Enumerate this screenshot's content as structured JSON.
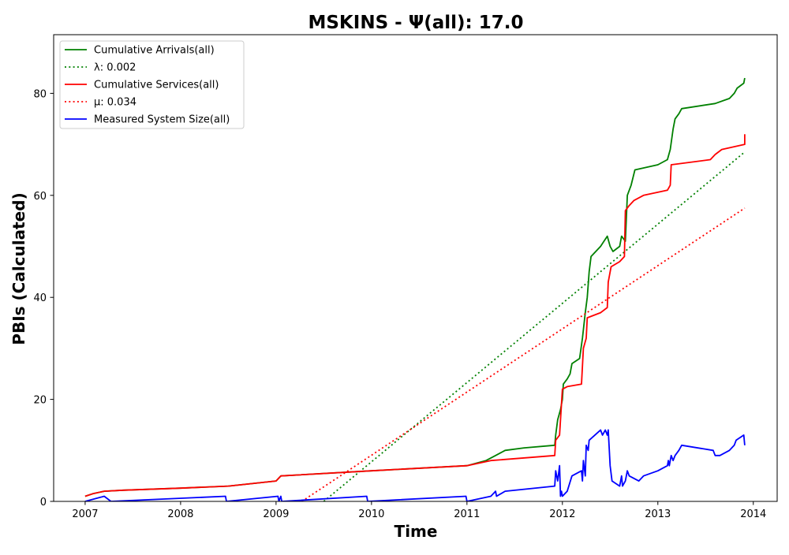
{
  "chart_data": {
    "type": "line",
    "title": "MSKINS -  Ψ(all): 17.0",
    "xlabel": "Time",
    "ylabel": "PBIs (Calculated)",
    "xlim": [
      2006.67,
      2014.25
    ],
    "ylim": [
      0,
      91.5
    ],
    "x_ticks": [
      2007,
      2008,
      2009,
      2010,
      2011,
      2012,
      2013,
      2014
    ],
    "y_ticks": [
      0,
      20,
      40,
      60,
      80
    ],
    "grid": false,
    "legend_position": "top-left",
    "series": [
      {
        "name": "Cumulative Arrivals(all)",
        "color": "#008000",
        "style": "solid",
        "points": [
          [
            2007.0,
            1
          ],
          [
            2007.08,
            1.5
          ],
          [
            2007.2,
            2
          ],
          [
            2007.4,
            2.2
          ],
          [
            2008.0,
            2.6
          ],
          [
            2008.5,
            3
          ],
          [
            2009.0,
            4
          ],
          [
            2009.05,
            5
          ],
          [
            2010.0,
            6
          ],
          [
            2011.0,
            7
          ],
          [
            2011.2,
            8
          ],
          [
            2011.3,
            9
          ],
          [
            2011.4,
            10
          ],
          [
            2011.6,
            10.5
          ],
          [
            2011.92,
            11
          ],
          [
            2011.93,
            13
          ],
          [
            2011.95,
            16
          ],
          [
            2011.98,
            18
          ],
          [
            2012.0,
            20
          ],
          [
            2012.01,
            23
          ],
          [
            2012.05,
            24
          ],
          [
            2012.08,
            25
          ],
          [
            2012.1,
            27
          ],
          [
            2012.18,
            28
          ],
          [
            2012.21,
            32
          ],
          [
            2012.24,
            37
          ],
          [
            2012.26,
            40
          ],
          [
            2012.28,
            45
          ],
          [
            2012.3,
            48
          ],
          [
            2012.4,
            50
          ],
          [
            2012.47,
            52
          ],
          [
            2012.5,
            50
          ],
          [
            2012.53,
            49
          ],
          [
            2012.6,
            50
          ],
          [
            2012.62,
            52
          ],
          [
            2012.66,
            51
          ],
          [
            2012.68,
            60
          ],
          [
            2012.72,
            62
          ],
          [
            2012.76,
            65
          ],
          [
            2013.0,
            66
          ],
          [
            2013.1,
            67
          ],
          [
            2013.13,
            69
          ],
          [
            2013.16,
            73
          ],
          [
            2013.18,
            75
          ],
          [
            2013.22,
            76
          ],
          [
            2013.25,
            77
          ],
          [
            2013.6,
            78
          ],
          [
            2013.75,
            79
          ],
          [
            2013.8,
            80
          ],
          [
            2013.83,
            81
          ],
          [
            2013.9,
            82
          ],
          [
            2013.91,
            83
          ]
        ]
      },
      {
        "name": "λ: 0.002",
        "color": "#008000",
        "style": "dotted",
        "points": [
          [
            2009.5,
            0
          ],
          [
            2013.91,
            68.5
          ]
        ]
      },
      {
        "name": "Cumulative Services(all)",
        "color": "#ff0000",
        "style": "solid",
        "points": [
          [
            2007.0,
            1
          ],
          [
            2007.08,
            1.5
          ],
          [
            2007.2,
            2
          ],
          [
            2007.4,
            2.2
          ],
          [
            2008.0,
            2.6
          ],
          [
            2008.5,
            3
          ],
          [
            2009.0,
            4
          ],
          [
            2009.05,
            5
          ],
          [
            2010.0,
            6
          ],
          [
            2011.0,
            7
          ],
          [
            2011.25,
            8
          ],
          [
            2011.92,
            9
          ],
          [
            2011.93,
            12
          ],
          [
            2011.97,
            13
          ],
          [
            2012.0,
            22
          ],
          [
            2012.05,
            22.5
          ],
          [
            2012.2,
            23
          ],
          [
            2012.22,
            30
          ],
          [
            2012.25,
            32
          ],
          [
            2012.26,
            36
          ],
          [
            2012.4,
            37
          ],
          [
            2012.47,
            38
          ],
          [
            2012.48,
            43
          ],
          [
            2012.51,
            46
          ],
          [
            2012.6,
            47
          ],
          [
            2012.65,
            48
          ],
          [
            2012.66,
            57
          ],
          [
            2012.7,
            58
          ],
          [
            2012.75,
            59
          ],
          [
            2012.85,
            60
          ],
          [
            2013.1,
            61
          ],
          [
            2013.13,
            62
          ],
          [
            2013.14,
            66
          ],
          [
            2013.55,
            67
          ],
          [
            2013.6,
            68
          ],
          [
            2013.67,
            69
          ],
          [
            2013.91,
            70
          ],
          [
            2013.91,
            72
          ]
        ]
      },
      {
        "name": "μ: 0.034",
        "color": "#ff0000",
        "style": "dotted",
        "points": [
          [
            2009.27,
            0
          ],
          [
            2013.91,
            57.5
          ]
        ]
      },
      {
        "name": "Measured System Size(all)",
        "color": "#0000ff",
        "style": "solid",
        "points": [
          [
            2007.0,
            0
          ],
          [
            2007.2,
            1
          ],
          [
            2007.27,
            0
          ],
          [
            2008.47,
            1
          ],
          [
            2008.48,
            0
          ],
          [
            2009.02,
            1
          ],
          [
            2009.03,
            0
          ],
          [
            2009.05,
            1
          ],
          [
            2009.06,
            0
          ],
          [
            2009.95,
            1
          ],
          [
            2009.96,
            0
          ],
          [
            2010.99,
            1
          ],
          [
            2011.0,
            0
          ],
          [
            2011.25,
            1
          ],
          [
            2011.3,
            2
          ],
          [
            2011.31,
            1
          ],
          [
            2011.4,
            2
          ],
          [
            2011.92,
            3
          ],
          [
            2011.93,
            6
          ],
          [
            2011.95,
            4
          ],
          [
            2011.97,
            7
          ],
          [
            2011.98,
            1
          ],
          [
            2011.99,
            2
          ],
          [
            2012.0,
            1
          ],
          [
            2012.05,
            2
          ],
          [
            2012.1,
            5
          ],
          [
            2012.2,
            6
          ],
          [
            2012.21,
            4
          ],
          [
            2012.22,
            8
          ],
          [
            2012.24,
            5
          ],
          [
            2012.25,
            11
          ],
          [
            2012.27,
            10
          ],
          [
            2012.28,
            12
          ],
          [
            2012.4,
            14
          ],
          [
            2012.42,
            13
          ],
          [
            2012.45,
            14
          ],
          [
            2012.47,
            13
          ],
          [
            2012.48,
            14
          ],
          [
            2012.5,
            7
          ],
          [
            2012.52,
            4
          ],
          [
            2012.6,
            3
          ],
          [
            2012.62,
            5
          ],
          [
            2012.63,
            3
          ],
          [
            2012.66,
            4
          ],
          [
            2012.68,
            6
          ],
          [
            2012.7,
            5
          ],
          [
            2012.8,
            4
          ],
          [
            2012.85,
            5
          ],
          [
            2013.0,
            6
          ],
          [
            2013.1,
            7
          ],
          [
            2013.11,
            8
          ],
          [
            2013.12,
            7
          ],
          [
            2013.14,
            9
          ],
          [
            2013.16,
            8
          ],
          [
            2013.18,
            9
          ],
          [
            2013.22,
            10
          ],
          [
            2013.25,
            11
          ],
          [
            2013.58,
            10
          ],
          [
            2013.6,
            9
          ],
          [
            2013.65,
            9
          ],
          [
            2013.75,
            10
          ],
          [
            2013.8,
            11
          ],
          [
            2013.82,
            12
          ],
          [
            2013.9,
            13
          ],
          [
            2013.91,
            11
          ]
        ]
      }
    ]
  }
}
